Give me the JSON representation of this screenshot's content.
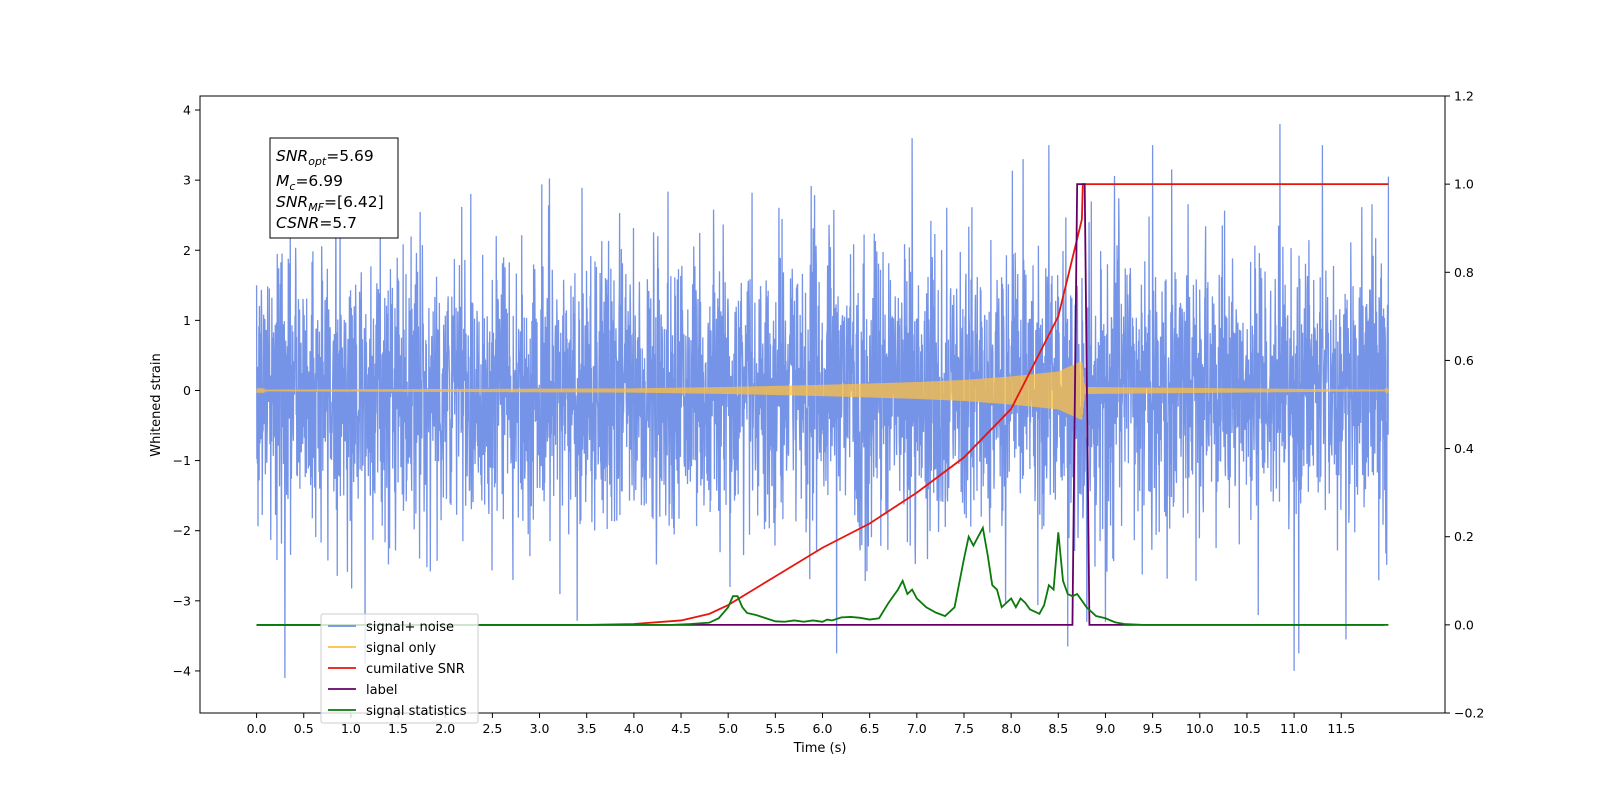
{
  "chart_data": {
    "type": "line",
    "title": "",
    "xlabel": "Time (s)",
    "ylabel": "Whitened strain",
    "xlim": [
      -0.6,
      12.6
    ],
    "ylim": [
      -4.6,
      4.2
    ],
    "y2lim": [
      -0.2,
      1.2
    ],
    "grid": false,
    "legend_location": "lower-left",
    "x_ticks": [
      "0.0",
      "0.5",
      "1.0",
      "1.5",
      "2.0",
      "2.5",
      "3.0",
      "3.5",
      "4.0",
      "4.5",
      "5.0",
      "5.5",
      "6.0",
      "6.5",
      "7.0",
      "7.5",
      "8.0",
      "8.5",
      "9.0",
      "9.5",
      "10.0",
      "10.5",
      "11.0",
      "11.5"
    ],
    "y_ticks": [
      "4",
      "3",
      "2",
      "1",
      "0",
      "−1",
      "−2",
      "−3",
      "−4"
    ],
    "y2_ticks": [
      "1.2",
      "1.0",
      "0.8",
      "0.6",
      "0.4",
      "0.2",
      "0.0",
      "−0.2"
    ],
    "annotation": {
      "snr_opt": "=5.69",
      "mc": "=6.99",
      "snr_mf": "=[6.42]",
      "csnr": "=5.7"
    },
    "series": [
      {
        "name": "signal+ noise",
        "axis": "left",
        "color": "#6f8ee6",
        "x_range": [
          0,
          12
        ],
        "amplitude": 1.0,
        "extremes": [
          [
            0.3,
            -4.1
          ],
          [
            1.15,
            -3.9
          ],
          [
            6.15,
            -3.75
          ],
          [
            8.6,
            -3.65
          ],
          [
            10.85,
            3.8
          ],
          [
            11.0,
            -4.0
          ],
          [
            11.05,
            -3.75
          ],
          [
            11.55,
            -3.55
          ],
          [
            6.95,
            3.6
          ],
          [
            8.4,
            3.5
          ],
          [
            9.5,
            3.5
          ],
          [
            11.3,
            3.5
          ],
          [
            12.0,
            3.05
          ],
          [
            0.0,
            1.5
          ]
        ]
      },
      {
        "name": "signal only",
        "axis": "left",
        "color": "#ffbf40",
        "envelope": [
          [
            0,
            0.01
          ],
          [
            4,
            0.03
          ],
          [
            5,
            0.05
          ],
          [
            6,
            0.08
          ],
          [
            7,
            0.12
          ],
          [
            7.5,
            0.15
          ],
          [
            8,
            0.2
          ],
          [
            8.5,
            0.27
          ],
          [
            8.75,
            0.42
          ],
          [
            8.78,
            0.05
          ],
          [
            12,
            0.01
          ]
        ]
      },
      {
        "name": "cumilative SNR",
        "axis": "right",
        "color": "#e8150f",
        "x": [
          0,
          3.5,
          4.0,
          4.5,
          4.8,
          5.0,
          5.5,
          6.0,
          6.5,
          7.0,
          7.5,
          8.0,
          8.5,
          8.75,
          8.76,
          12.0
        ],
        "y": [
          0,
          0,
          0.002,
          0.01,
          0.025,
          0.045,
          0.11,
          0.175,
          0.23,
          0.3,
          0.38,
          0.49,
          0.7,
          0.92,
          1.0,
          1.0
        ]
      },
      {
        "name": "label",
        "axis": "right",
        "color": "#660066",
        "x": [
          0,
          8.65,
          8.7,
          8.78,
          8.83,
          11.95
        ],
        "y": [
          0,
          0,
          1.0,
          1.0,
          0,
          0
        ]
      },
      {
        "name": "signal statistics",
        "axis": "right",
        "color": "#0a7a0a",
        "x": [
          0,
          4.4,
          4.6,
          4.8,
          4.9,
          5.0,
          5.05,
          5.1,
          5.15,
          5.2,
          5.3,
          5.4,
          5.5,
          5.6,
          5.7,
          5.8,
          5.9,
          6.0,
          6.05,
          6.1,
          6.2,
          6.3,
          6.4,
          6.5,
          6.6,
          6.7,
          6.8,
          6.85,
          6.9,
          6.95,
          7.0,
          7.1,
          7.2,
          7.3,
          7.4,
          7.5,
          7.55,
          7.6,
          7.65,
          7.7,
          7.75,
          7.8,
          7.85,
          7.9,
          8.0,
          8.05,
          8.1,
          8.15,
          8.2,
          8.3,
          8.35,
          8.4,
          8.45,
          8.5,
          8.55,
          8.6,
          8.65,
          8.7,
          8.8,
          8.9,
          9.0,
          9.1,
          9.2,
          9.4,
          12.0
        ],
        "y": [
          0,
          0,
          0.002,
          0.005,
          0.015,
          0.04,
          0.065,
          0.065,
          0.04,
          0.027,
          0.022,
          0.015,
          0.008,
          0.007,
          0.01,
          0.007,
          0.01,
          0.007,
          0.012,
          0.01,
          0.017,
          0.018,
          0.016,
          0.012,
          0.015,
          0.05,
          0.08,
          0.1,
          0.07,
          0.08,
          0.06,
          0.04,
          0.028,
          0.02,
          0.04,
          0.15,
          0.2,
          0.18,
          0.2,
          0.22,
          0.16,
          0.09,
          0.08,
          0.04,
          0.06,
          0.04,
          0.06,
          0.05,
          0.035,
          0.025,
          0.045,
          0.09,
          0.08,
          0.21,
          0.1,
          0.07,
          0.065,
          0.07,
          0.04,
          0.02,
          0.015,
          0.006,
          0.002,
          0,
          0
        ]
      }
    ]
  }
}
